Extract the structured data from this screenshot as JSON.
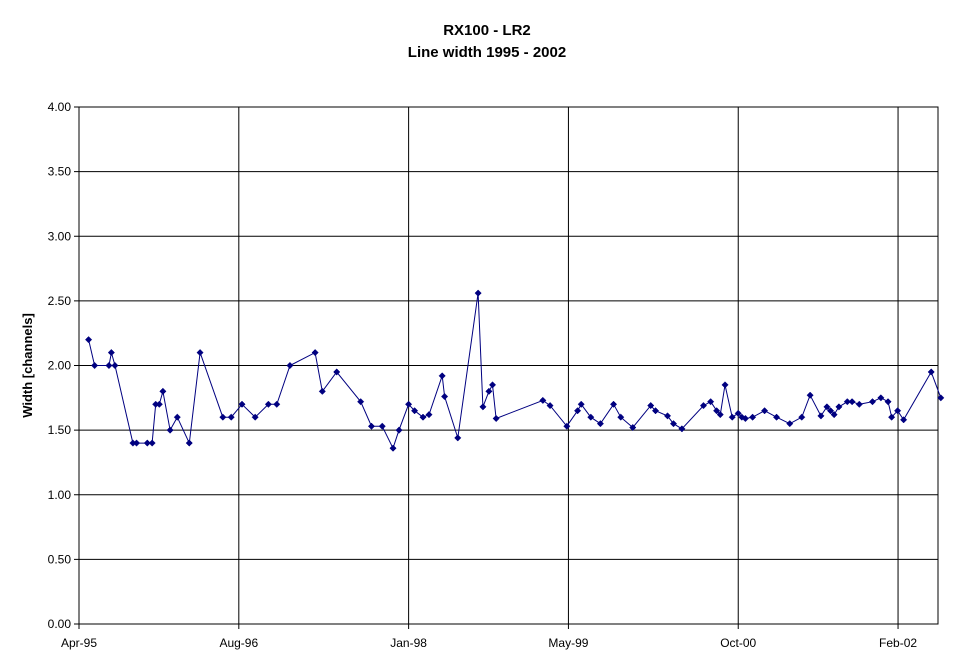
{
  "chart_data": {
    "type": "line",
    "title": "RX100 - LR2",
    "subtitle": "Line width 1995 - 2002",
    "xlabel": "",
    "ylabel": "Width [channels]",
    "ylim": [
      0,
      4
    ],
    "y_ticks": [
      "0.00",
      "0.50",
      "1.00",
      "1.50",
      "2.00",
      "2.50",
      "3.00",
      "3.50",
      "4.00"
    ],
    "x_ticks": [
      "Apr-95",
      "Aug-96",
      "Jan-98",
      "May-99",
      "Oct-00",
      "Feb-02"
    ],
    "x_axis_start": "Apr-95",
    "x_axis_end": "Jun-02",
    "grid": true,
    "legend": "none",
    "line_color": "#000080",
    "series": [
      {
        "x_format": "year-fraction",
        "x": [
          1995.33,
          1995.38,
          1995.5,
          1995.52,
          1995.55,
          1995.7,
          1995.73,
          1995.82,
          1995.86,
          1995.89,
          1995.92,
          1995.95,
          1996.01,
          1996.07,
          1996.17,
          1996.26,
          1996.45,
          1996.52,
          1996.61,
          1996.72,
          1996.83,
          1996.9,
          1997.01,
          1997.22,
          1997.28,
          1997.4,
          1997.6,
          1997.69,
          1997.78,
          1997.87,
          1997.92,
          1998.0,
          1998.05,
          1998.12,
          1998.17,
          1998.28,
          1998.3,
          1998.41,
          1998.58,
          1998.62,
          1998.67,
          1998.7,
          1998.73,
          1999.12,
          1999.18,
          1999.32,
          1999.41,
          1999.44,
          1999.52,
          1999.6,
          1999.71,
          1999.77,
          1999.87,
          2000.02,
          2000.06,
          2000.16,
          2000.21,
          2000.28,
          2000.46,
          2000.52,
          2000.57,
          2000.6,
          2000.64,
          2000.7,
          2000.75,
          2000.78,
          2000.81,
          2000.87,
          2000.97,
          2001.07,
          2001.18,
          2001.28,
          2001.35,
          2001.44,
          2001.49,
          2001.52,
          2001.55,
          2001.59,
          2001.66,
          2001.7,
          2001.76,
          2001.87,
          2001.94,
          2002.0,
          2002.03,
          2002.08,
          2002.13,
          2002.36,
          2002.44
        ],
        "y": [
          2.2,
          2.0,
          2.0,
          2.1,
          2.0,
          1.4,
          1.4,
          1.4,
          1.4,
          1.7,
          1.7,
          1.8,
          1.5,
          1.6,
          1.4,
          2.1,
          1.6,
          1.6,
          1.7,
          1.6,
          1.7,
          1.7,
          2.0,
          2.1,
          1.8,
          1.95,
          1.72,
          1.53,
          1.53,
          1.36,
          1.5,
          1.7,
          1.65,
          1.6,
          1.62,
          1.92,
          1.76,
          1.44,
          2.56,
          1.68,
          1.8,
          1.85,
          1.59,
          1.73,
          1.69,
          1.53,
          1.65,
          1.7,
          1.6,
          1.55,
          1.7,
          1.6,
          1.52,
          1.69,
          1.65,
          1.61,
          1.55,
          1.51,
          1.69,
          1.72,
          1.65,
          1.62,
          1.85,
          1.6,
          1.63,
          1.6,
          1.59,
          1.6,
          1.65,
          1.6,
          1.55,
          1.6,
          1.77,
          1.61,
          1.68,
          1.65,
          1.62,
          1.68,
          1.72,
          1.72,
          1.7,
          1.72,
          1.75,
          1.72,
          1.6,
          1.65,
          1.58,
          1.95,
          1.75
        ]
      }
    ]
  }
}
